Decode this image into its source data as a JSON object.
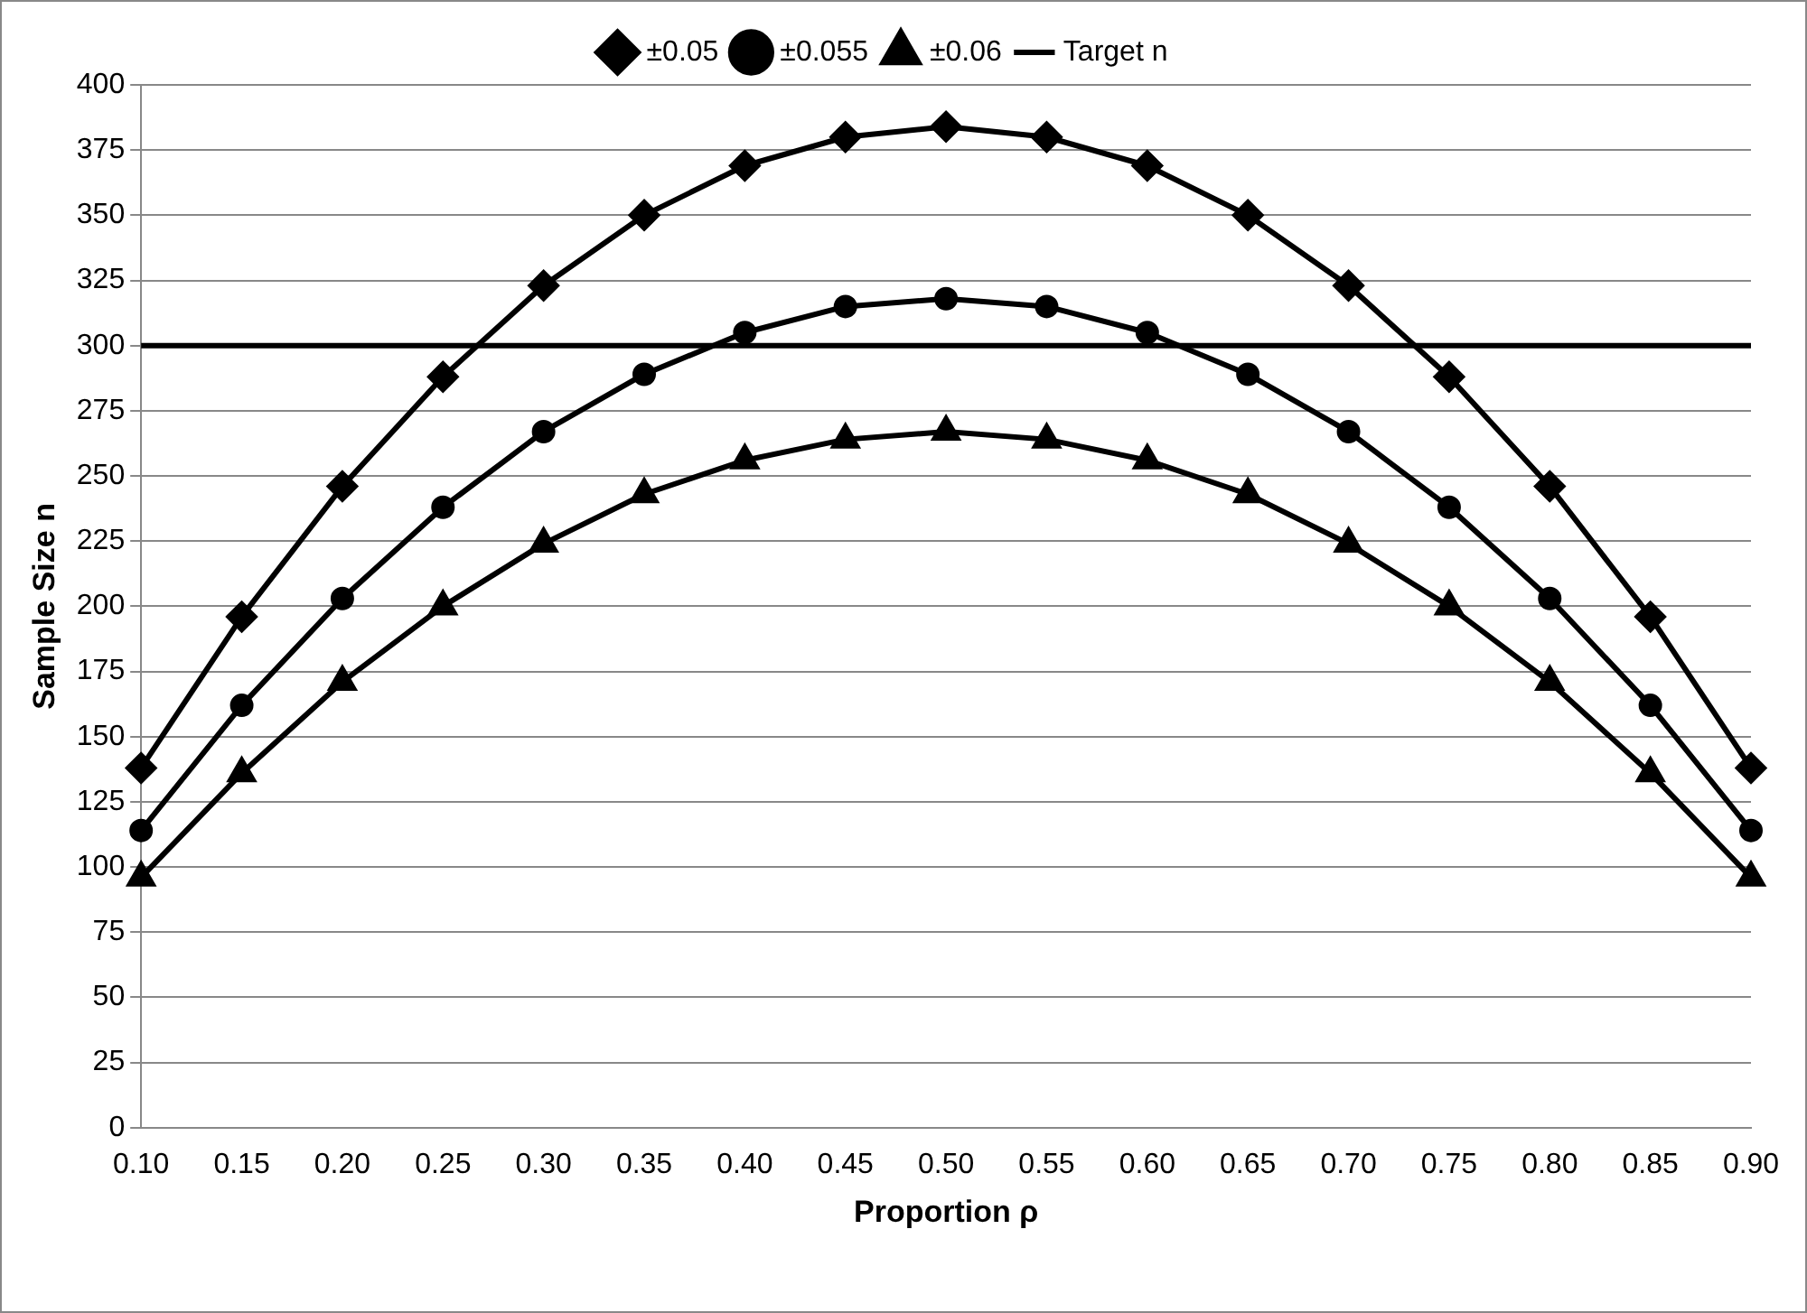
{
  "chart_data": {
    "type": "line",
    "xlabel": "Proportion ρ",
    "ylabel": "Sample Size n",
    "categories": [
      "0.10",
      "0.15",
      "0.20",
      "0.25",
      "0.30",
      "0.35",
      "0.40",
      "0.45",
      "0.50",
      "0.55",
      "0.60",
      "0.65",
      "0.70",
      "0.75",
      "0.80",
      "0.85",
      "0.90"
    ],
    "series": [
      {
        "name": "±0.05",
        "color": "#000000",
        "marker": "diamond",
        "values": [
          138,
          196,
          246,
          288,
          323,
          350,
          369,
          380,
          384,
          380,
          369,
          350,
          323,
          288,
          246,
          196,
          138
        ]
      },
      {
        "name": "±0.055",
        "color": "#000000",
        "marker": "circle",
        "values": [
          114,
          162,
          203,
          238,
          267,
          289,
          305,
          315,
          318,
          315,
          305,
          289,
          267,
          238,
          203,
          162,
          114
        ]
      },
      {
        "name": "±0.06",
        "color": "#000000",
        "marker": "triangle",
        "values": [
          96,
          136,
          171,
          200,
          224,
          243,
          256,
          264,
          267,
          264,
          256,
          243,
          224,
          200,
          171,
          136,
          96
        ]
      },
      {
        "name": "Target n",
        "color": "#000000",
        "marker": "none",
        "values": [
          300,
          300,
          300,
          300,
          300,
          300,
          300,
          300,
          300,
          300,
          300,
          300,
          300,
          300,
          300,
          300,
          300
        ]
      }
    ],
    "ylim": [
      0,
      400
    ],
    "yticks": [
      0,
      25,
      50,
      75,
      100,
      125,
      150,
      175,
      200,
      225,
      250,
      275,
      300,
      325,
      350,
      375,
      400
    ],
    "grid": "y",
    "legend": "top",
    "line_style": "solid"
  }
}
